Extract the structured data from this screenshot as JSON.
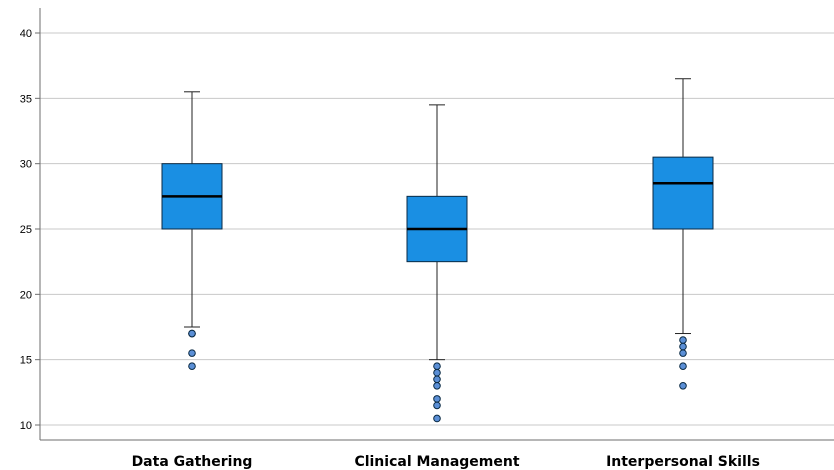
{
  "chart_data": {
    "type": "boxplot",
    "title": "",
    "xlabel": "",
    "ylabel": "",
    "ylim": [
      9,
      42
    ],
    "yticks": [
      10,
      15,
      20,
      25,
      30,
      35,
      40
    ],
    "grid": "horizontal",
    "categories": [
      "Data Gathering",
      "Clinical Management",
      "Interpersonal Skills"
    ],
    "boxes": [
      {
        "category": "Data Gathering",
        "whisker_low": 17.5,
        "q1": 25,
        "median": 27.5,
        "q3": 30,
        "whisker_high": 35.5,
        "outliers": [
          17,
          17,
          15.5,
          14.5
        ]
      },
      {
        "category": "Clinical Management",
        "whisker_low": 15,
        "q1": 22.5,
        "median": 25,
        "q3": 27.5,
        "whisker_high": 34.5,
        "outliers": [
          14.5,
          14,
          13.5,
          13,
          12,
          11.5,
          10.5
        ]
      },
      {
        "category": "Interpersonal Skills",
        "whisker_low": 17,
        "q1": 25,
        "median": 28.5,
        "q3": 30.5,
        "whisker_high": 36.5,
        "outliers": [
          16.5,
          16,
          15.5,
          14.5,
          13
        ]
      }
    ],
    "colors": {
      "box_fill": "#1a8fe3",
      "box_stroke": "#0a2a44",
      "outlier_fill": "#5b8fd6",
      "grid": "#c8c8c8",
      "axis": "#6e6e6e"
    }
  }
}
